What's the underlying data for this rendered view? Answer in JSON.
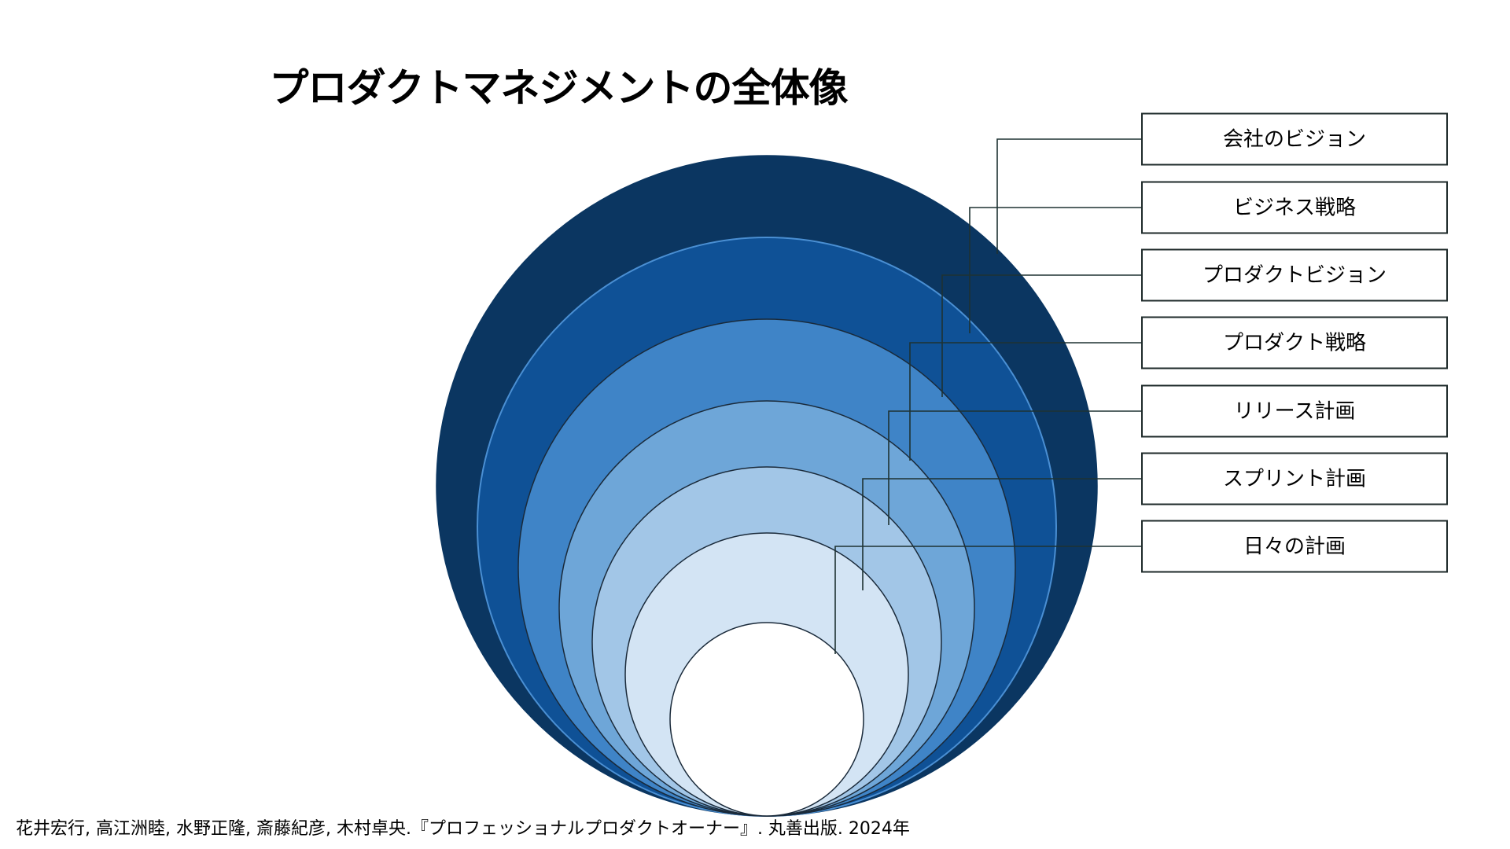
{
  "title": "プロダクトマネジメントの全体像",
  "layers": [
    {
      "label": "会社のビジョン",
      "color": "#0b3661"
    },
    {
      "label": "ビジネス戦略",
      "color": "#0f5196"
    },
    {
      "label": "プロダクトビジョン",
      "color": "#3f84c7"
    },
    {
      "label": "プロダクト戦略",
      "color": "#6ea6d8"
    },
    {
      "label": "リリース計画",
      "color": "#a2c6e7"
    },
    {
      "label": "スプリント計画",
      "color": "#d3e4f4"
    },
    {
      "label": "日々の計画",
      "color": "#ffffff"
    }
  ],
  "citation": "花井宏行, 高江洲睦, 水野正隆, 斎藤紀彦, 木村卓央.『プロフェッショナルプロダクトオーナー』. 丸善出版. 2024年"
}
